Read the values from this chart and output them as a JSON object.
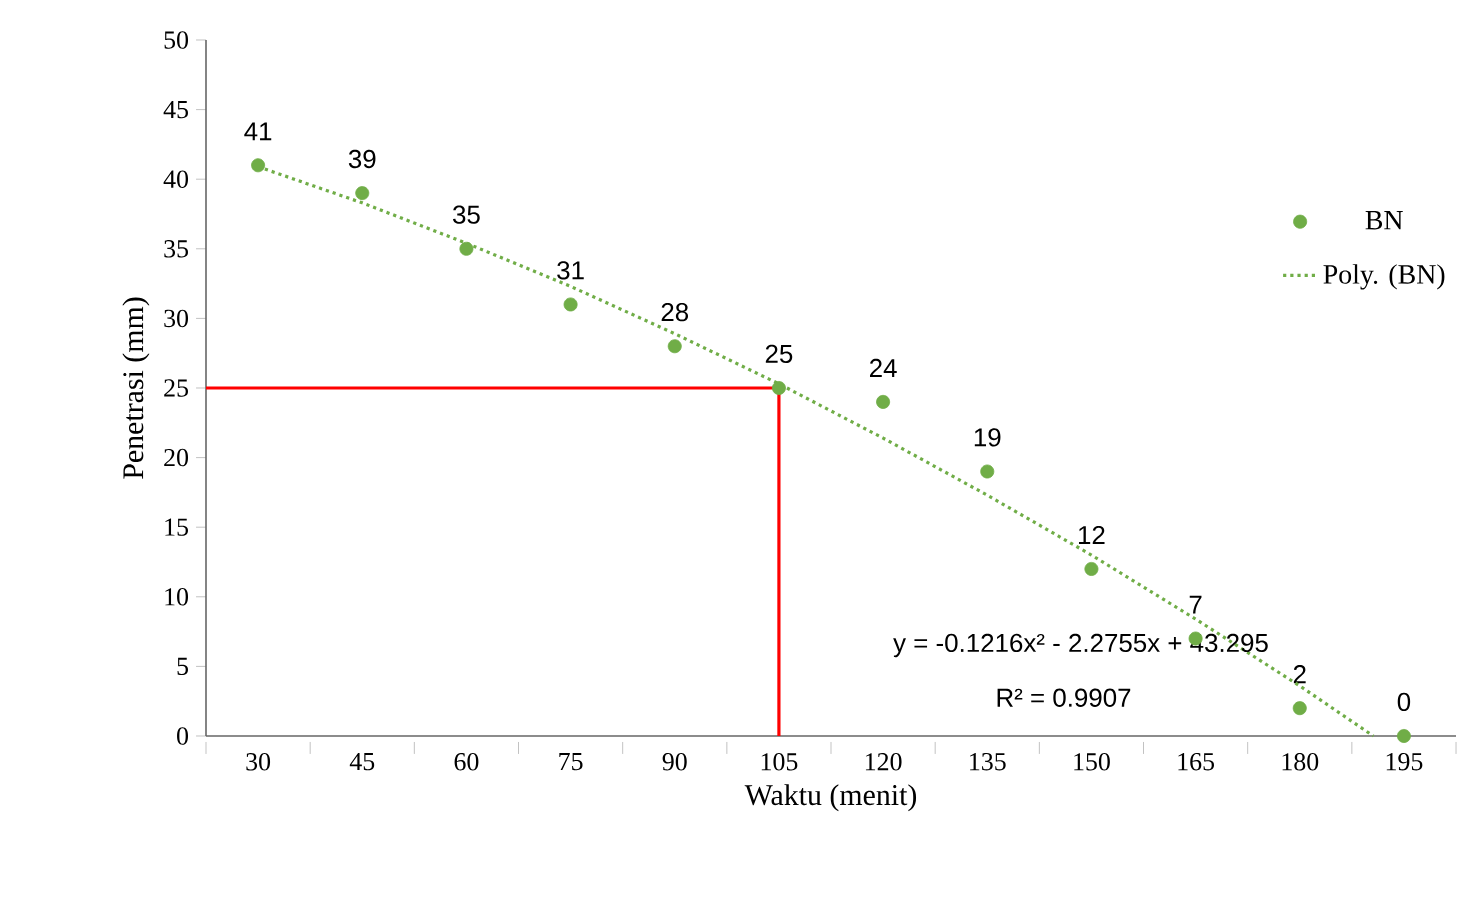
{
  "chart_data": {
    "type": "scatter",
    "xlabel": "Waktu (menit)",
    "ylabel": "Penetrasi (mm)",
    "x": [
      30,
      45,
      60,
      75,
      90,
      105,
      120,
      135,
      150,
      165,
      180,
      195
    ],
    "xlim": [
      22.5,
      202.5
    ],
    "xticks": [
      30,
      45,
      60,
      75,
      90,
      105,
      120,
      135,
      150,
      165,
      180,
      195
    ],
    "ylim": [
      0,
      50
    ],
    "yticks": [
      0,
      5,
      10,
      15,
      20,
      25,
      30,
      35,
      40,
      45,
      50
    ],
    "series": [
      {
        "name": "BN",
        "color": "#70ad47",
        "values": [
          41,
          39,
          35,
          31,
          28,
          25,
          24,
          19,
          12,
          7,
          2,
          0
        ],
        "value_labels": [
          "41",
          "39",
          "35",
          "31",
          "28",
          "25",
          "24",
          "19",
          "12",
          "7",
          "2",
          "0"
        ]
      },
      {
        "name": "Poly. (BN)",
        "type": "line",
        "line_style": "dotted",
        "marker": "none",
        "color": "#70ad47",
        "x": [
          30,
          45,
          60,
          75,
          90,
          105,
          120,
          135,
          150,
          165,
          180,
          190.6
        ],
        "values": [
          40.9,
          38.3,
          35.4,
          32.3,
          28.9,
          25.3,
          21.4,
          17.3,
          13.0,
          8.4,
          3.6,
          0
        ]
      },
      {
        "type": "line",
        "line_style": "solid",
        "marker": "none",
        "color": "#ff0000",
        "x": [
          22.5,
          105,
          105
        ],
        "values": [
          25,
          25,
          0
        ]
      }
    ],
    "marker": "circle",
    "legend": "right",
    "grid": false,
    "annotations": [
      "y = -0.1216x² - 2.2755x + 43.295",
      "R² = 0.9907"
    ]
  }
}
